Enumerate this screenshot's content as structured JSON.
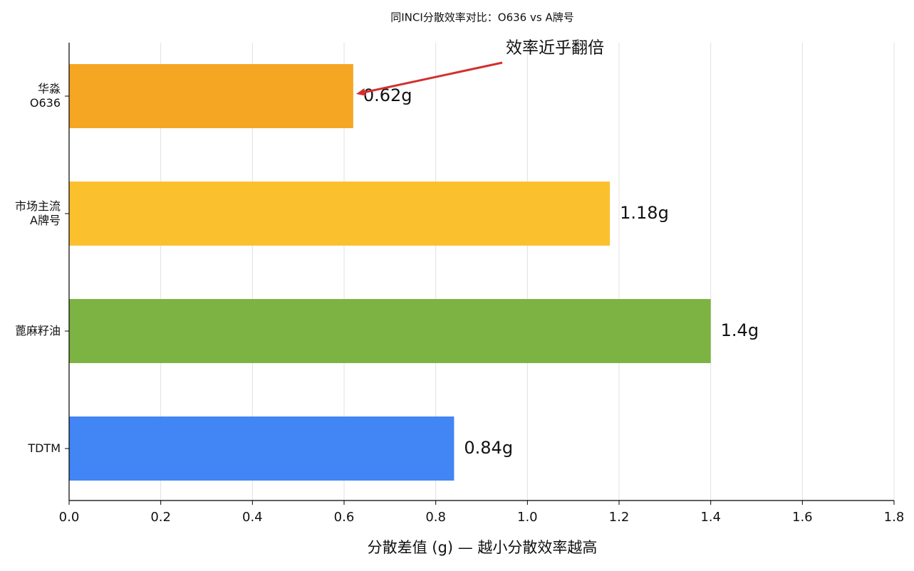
{
  "chart_data": {
    "type": "barh",
    "title": "同INCI分散效率对比：O636 vs A牌号",
    "xlabel": "分散差值 (g) — 越小分散效率越高",
    "categories": [
      "华淼\nO636",
      "市场主流\nA牌号",
      "蓖麻籽油",
      "TDTM"
    ],
    "values": [
      0.62,
      1.18,
      1.4,
      0.84
    ],
    "value_labels": [
      "0.62g",
      "1.18g",
      "1.4g",
      "0.84g"
    ],
    "colors": [
      "#f5a623",
      "#fbc02d",
      "#7cb342",
      "#4285f4"
    ],
    "xlim": [
      0,
      1.8
    ],
    "xticks": [
      {
        "value": 0,
        "label": "0.0"
      },
      0.2,
      0.4,
      0.6,
      0.8,
      {
        "value": 1,
        "label": "1.0"
      },
      1.2,
      1.4,
      1.6,
      1.8
    ],
    "grid": true,
    "annotation": "效率近乎翻倍",
    "annotation_color": "#d32f2f"
  }
}
